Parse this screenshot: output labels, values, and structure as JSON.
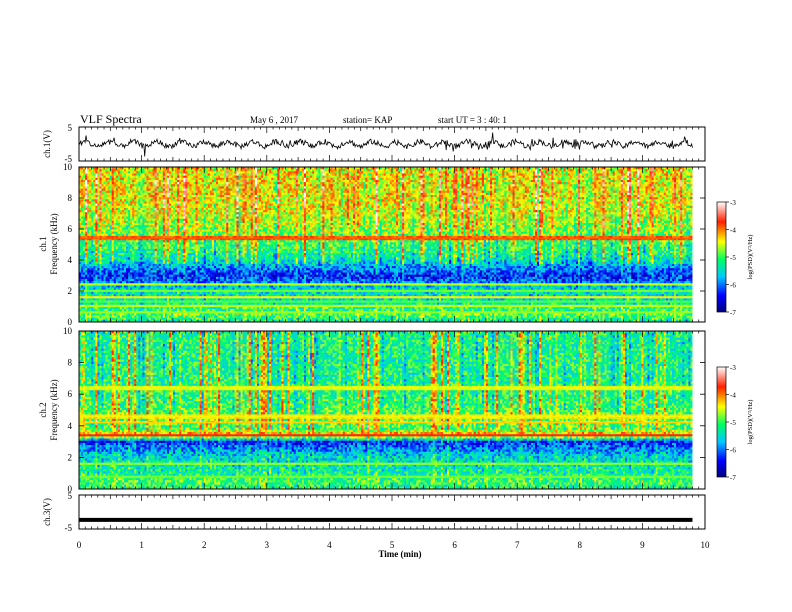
{
  "header": {
    "title": "VLF Spectra",
    "date": "May 6 , 2017",
    "station": "station= KAP",
    "start_time": "start UT = 3 : 40: 1"
  },
  "chart_data": [
    {
      "type": "line",
      "panel": "ch1-waveform",
      "ylabel": "ch.1(V)",
      "ylim": [
        -5,
        5
      ],
      "yticks": [
        "5",
        "-5"
      ],
      "xlim": [
        0,
        10
      ],
      "series_range_min": [
        -1.1,
        9.8
      ],
      "color": "#000000"
    },
    {
      "type": "heatmap",
      "panel": "ch1-spectrogram",
      "title": "ch.1",
      "ylabel": "Frequency (kHz)",
      "xlim": [
        0,
        9.8
      ],
      "ylim": [
        0,
        10
      ],
      "yticks": [
        "0",
        "2",
        "4",
        "6",
        "8",
        "10"
      ],
      "colorbar": {
        "label": "log(PSD)(V²/Hz)",
        "range": [
          -7,
          -3
        ],
        "ticks": [
          "-3",
          "-4",
          "-5",
          "-6",
          "-7"
        ]
      },
      "profile_khz": [
        0,
        0.5,
        1.0,
        1.3,
        1.6,
        2.0,
        2.5,
        2.8,
        3.0,
        3.5,
        4.0,
        5.0,
        6.0,
        7.0,
        8.0,
        9.0,
        10.0
      ],
      "profile_log_psd": [
        -5.3,
        -4.9,
        -5.2,
        -5.4,
        -5.5,
        -5.4,
        -5.9,
        -6.2,
        -6.3,
        -5.9,
        -5.4,
        -5.0,
        -4.7,
        -4.5,
        -4.4,
        -4.4,
        -4.4
      ],
      "bands": [
        {
          "khz": 5.4,
          "log_psd": -3.9,
          "label": ""
        },
        {
          "khz": 2.4,
          "log_psd": -4.6,
          "label": ""
        },
        {
          "khz": 2.0,
          "log_psd": -4.8,
          "label": ""
        },
        {
          "khz": 1.6,
          "log_psd": -4.4,
          "label": ""
        },
        {
          "khz": 1.3,
          "log_psd": -4.9,
          "label": ""
        },
        {
          "khz": 1.0,
          "log_psd": -4.6,
          "label": ""
        },
        {
          "khz": 0.6,
          "log_psd": -4.7,
          "label": ""
        }
      ]
    },
    {
      "type": "heatmap",
      "panel": "ch2-spectrogram",
      "title": "ch.2",
      "ylabel": "Frequency (kHz)",
      "xlim": [
        0,
        9.8
      ],
      "ylim": [
        0,
        10
      ],
      "yticks": [
        "0",
        "2",
        "4",
        "6",
        "8",
        "10"
      ],
      "colorbar": {
        "label": "log(PSD)(V²/Hz)",
        "range": [
          -7,
          -3
        ],
        "ticks": [
          "-3",
          "-4",
          "-5",
          "-6",
          "-7"
        ]
      },
      "profile_khz": [
        0,
        0.5,
        1.0,
        1.5,
        2.0,
        2.5,
        3.0,
        3.4,
        3.8,
        4.5,
        5.0,
        6.0,
        7.0,
        8.0,
        9.0,
        10.0
      ],
      "profile_log_psd": [
        -5.2,
        -5.0,
        -5.3,
        -5.4,
        -5.5,
        -5.9,
        -6.3,
        -4.0,
        -4.9,
        -4.8,
        -5.0,
        -5.1,
        -5.2,
        -5.2,
        -5.2,
        -5.2
      ],
      "bands": [
        {
          "khz": 3.4,
          "log_psd": -3.7,
          "label": ""
        },
        {
          "khz": 4.2,
          "log_psd": -4.3,
          "label": ""
        },
        {
          "khz": 4.6,
          "log_psd": -4.4,
          "label": ""
        },
        {
          "khz": 6.4,
          "log_psd": -4.5,
          "label": ""
        },
        {
          "khz": 1.6,
          "log_psd": -4.7,
          "label": ""
        },
        {
          "khz": 0.8,
          "log_psd": -4.8,
          "label": ""
        }
      ]
    },
    {
      "type": "line",
      "panel": "ch3-waveform",
      "ylabel": "ch.3(V)",
      "ylim": [
        -5,
        5
      ],
      "yticks": [
        "5",
        "-5"
      ],
      "xlim": [
        0,
        10
      ],
      "x": [
        0,
        9.8
      ],
      "y": [
        -2.3,
        -2.3
      ],
      "color": "#000000"
    }
  ],
  "x_axis": {
    "label": "Time (min)",
    "ticks": [
      "0",
      "1",
      "2",
      "3",
      "4",
      "5",
      "6",
      "7",
      "8",
      "9",
      "10"
    ]
  }
}
